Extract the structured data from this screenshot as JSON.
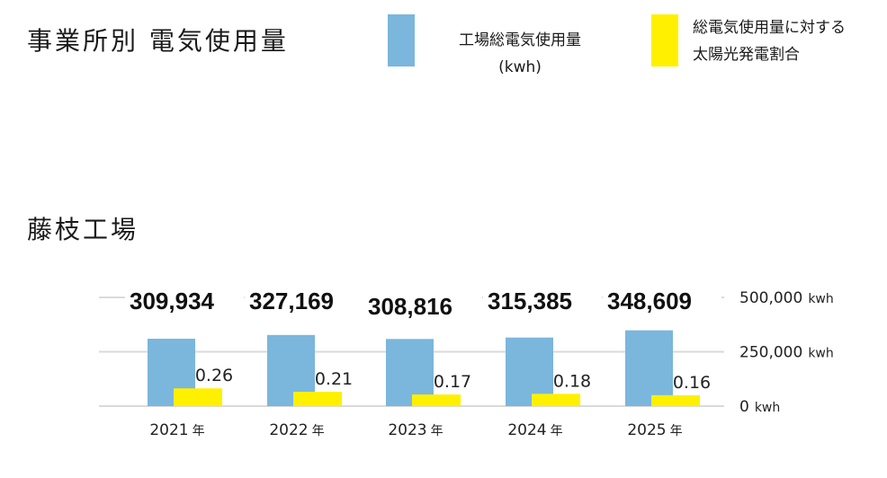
{
  "title": "事業所別 電気使用量",
  "legend": [
    {
      "label_line1": "工場総電気使用量",
      "label_line2": "(kwh)",
      "color": "#7bb6dc"
    },
    {
      "label_line1": "総電気使用量に対する",
      "label_line2": "太陽光発電割合",
      "color": "#fff000"
    }
  ],
  "subtitle": "藤枝工場",
  "chart_data": {
    "type": "bar",
    "categories": [
      "2021",
      "2022",
      "2023",
      "2024",
      "2025"
    ],
    "category_suffix": "年",
    "series": [
      {
        "name": "工場総電気使用量 (kwh)",
        "values": [
          309934,
          327169,
          308816,
          315385,
          348609
        ],
        "labels": [
          "309,934",
          "327,169",
          "308,816",
          "315,385",
          "348,609"
        ],
        "color": "#7bb6dc"
      },
      {
        "name": "総電気使用量に対する太陽光発電割合",
        "values": [
          0.26,
          0.21,
          0.17,
          0.18,
          0.16
        ],
        "labels": [
          "0.26",
          "0.21",
          "0.17",
          "0.18",
          "0.16"
        ],
        "color": "#fff000"
      }
    ],
    "y_ticks": [
      "0",
      "250,000",
      "500,000"
    ],
    "y_unit": "kwh",
    "ylim": [
      0,
      500000
    ],
    "grid": true
  }
}
